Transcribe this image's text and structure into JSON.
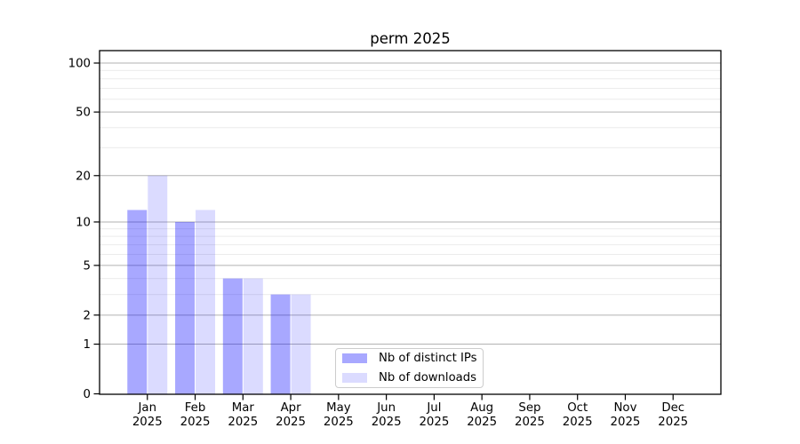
{
  "chart_data": {
    "type": "bar",
    "title": "perm 2025",
    "x_ticks": [
      {
        "line1": "Jan",
        "line2": "2025"
      },
      {
        "line1": "Feb",
        "line2": "2025"
      },
      {
        "line1": "Mar",
        "line2": "2025"
      },
      {
        "line1": "Apr",
        "line2": "2025"
      },
      {
        "line1": "May",
        "line2": "2025"
      },
      {
        "line1": "Jun",
        "line2": "2025"
      },
      {
        "line1": "Jul",
        "line2": "2025"
      },
      {
        "line1": "Aug",
        "line2": "2025"
      },
      {
        "line1": "Sep",
        "line2": "2025"
      },
      {
        "line1": "Oct",
        "line2": "2025"
      },
      {
        "line1": "Nov",
        "line2": "2025"
      },
      {
        "line1": "Dec",
        "line2": "2025"
      }
    ],
    "series": [
      {
        "name": "Nb of distinct IPs",
        "color": "#0000ff",
        "alpha": 0.34,
        "values": [
          12,
          10,
          4,
          3,
          0,
          0,
          0,
          0,
          0,
          0,
          0,
          0
        ]
      },
      {
        "name": "Nb of downloads",
        "color": "#0000ff",
        "alpha": 0.14,
        "values": [
          20,
          12,
          4,
          3,
          0,
          0,
          0,
          0,
          0,
          0,
          0,
          0
        ]
      }
    ],
    "yscale": "log1p",
    "ylim": [
      0,
      119
    ],
    "y_major_ticks": [
      0,
      1,
      2,
      5,
      10,
      20,
      50,
      100
    ],
    "y_minor_gridlines": [
      3,
      4,
      6,
      7,
      8,
      9,
      30,
      40,
      60,
      70,
      80,
      90
    ],
    "grid": {
      "major_color": "#b2b2b2",
      "minor_color": "#ececec"
    },
    "legend_position": "lower center"
  }
}
